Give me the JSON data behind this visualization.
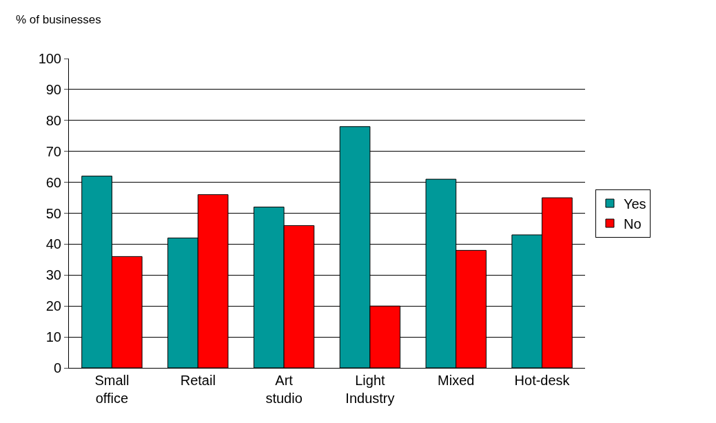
{
  "chart_data": {
    "type": "bar",
    "ylabel": "% of businesses",
    "categories": [
      "Small office",
      "Retail",
      "Art studio",
      "Light Industry",
      "Mixed",
      "Hot-desk"
    ],
    "series": [
      {
        "name": "Yes",
        "color": "#009999",
        "values": [
          62,
          42,
          52,
          78,
          61,
          43
        ]
      },
      {
        "name": "No",
        "color": "#ff0000",
        "values": [
          36,
          56,
          46,
          20,
          38,
          55
        ]
      }
    ],
    "ylim": [
      0,
      100
    ],
    "yticks": [
      0,
      10,
      20,
      30,
      40,
      50,
      60,
      70,
      80,
      90,
      100
    ],
    "grid": "y",
    "legend": "right"
  }
}
